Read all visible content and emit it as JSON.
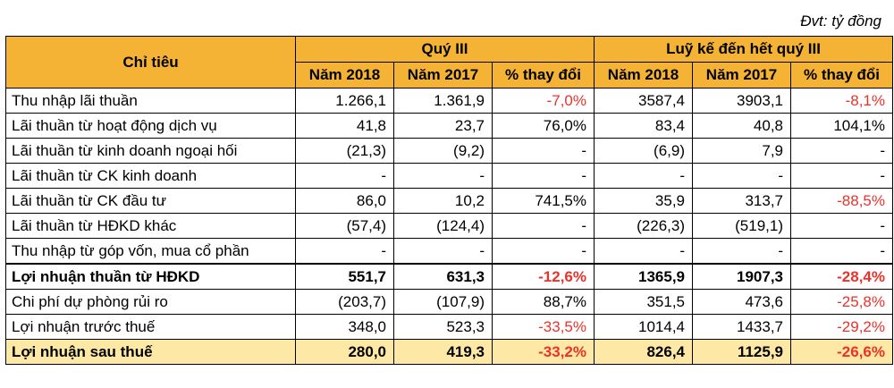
{
  "unit_note": "Đvt: tỷ đồng",
  "header": {
    "indicator": "Chỉ tiêu",
    "group1": "Quý III",
    "group2": "Luỹ kế đến hết quý III",
    "sub": [
      "Năm 2018",
      "Năm 2017",
      "% thay đổi",
      "Năm 2018",
      "Năm 2017",
      "% thay đổi"
    ]
  },
  "colors": {
    "header_bg": "#f5b335",
    "final_row_bg": "#fde9a5",
    "negative": "#e8322b"
  },
  "rows": [
    {
      "label": "Thu nhập lãi thuần",
      "values": [
        "1.266,1",
        "1.361,9",
        "-7,0%",
        "3587,4",
        "3903,1",
        "-8,1%"
      ],
      "neg": [
        false,
        false,
        true,
        false,
        false,
        true
      ]
    },
    {
      "label": "Lãi thuần từ hoạt động dịch vụ",
      "values": [
        "41,8",
        "23,7",
        "76,0%",
        "83,4",
        "40,8",
        "104,1%"
      ],
      "neg": [
        false,
        false,
        false,
        false,
        false,
        false
      ]
    },
    {
      "label": "Lãi thuần từ kinh doanh ngoại hối",
      "values": [
        "(21,3)",
        "(9,2)",
        "-",
        "(6,9)",
        "7,9",
        "-"
      ],
      "neg": [
        false,
        false,
        false,
        false,
        false,
        false
      ]
    },
    {
      "label": "Lãi thuần từ CK kinh doanh",
      "values": [
        "-",
        "-",
        "-",
        "-",
        "-",
        "-"
      ],
      "neg": [
        false,
        false,
        false,
        false,
        false,
        false
      ]
    },
    {
      "label": "Lãi thuần từ CK đầu tư",
      "values": [
        "86,0",
        "10,2",
        "741,5%",
        "35,9",
        "313,7",
        "-88,5%"
      ],
      "neg": [
        false,
        false,
        false,
        false,
        false,
        true
      ]
    },
    {
      "label": "Lãi thuần từ HĐKD khác",
      "values": [
        "(57,4)",
        "(124,4)",
        "-",
        "(226,3)",
        "(519,1)",
        "-"
      ],
      "neg": [
        false,
        false,
        false,
        false,
        false,
        false
      ]
    },
    {
      "label": "Thu nhập từ góp vốn, mua cổ phần",
      "values": [
        "-",
        "-",
        "-",
        "-",
        "-",
        "-"
      ],
      "neg": [
        false,
        false,
        false,
        false,
        false,
        false
      ]
    },
    {
      "label": "Lợi nhuận thuần từ HĐKD",
      "values": [
        "551,7",
        "631,3",
        "-12,6%",
        "1365,9",
        "1907,3",
        "-28,4%"
      ],
      "neg": [
        false,
        false,
        true,
        false,
        false,
        true
      ]
    },
    {
      "label": "Chi phí dự phòng rủi ro",
      "values": [
        "(203,7)",
        "(107,9)",
        "88,7%",
        "351,5",
        "473,6",
        "-25,8%"
      ],
      "neg": [
        false,
        false,
        false,
        false,
        false,
        true
      ]
    },
    {
      "label": "Lợi nhuận trước thuế",
      "values": [
        "348,0",
        "523,3",
        "-33,5%",
        "1014,4",
        "1433,7",
        "-29,2%"
      ],
      "neg": [
        false,
        false,
        true,
        false,
        false,
        true
      ]
    },
    {
      "label": "Lợi nhuận sau thuế",
      "values": [
        "280,0",
        "419,3",
        "-33,2%",
        "826,4",
        "1125,9",
        "-26,6%"
      ],
      "neg": [
        false,
        false,
        true,
        false,
        false,
        true
      ]
    }
  ]
}
